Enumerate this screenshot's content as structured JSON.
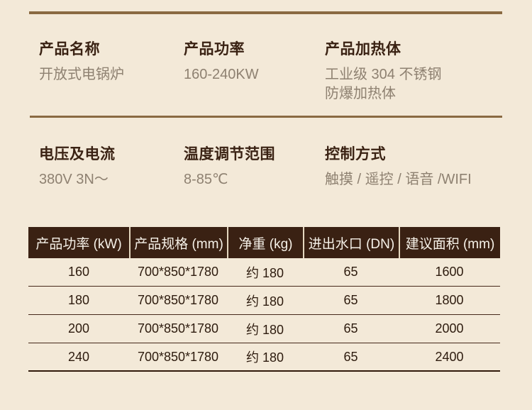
{
  "colors": {
    "background": "#f3e9d8",
    "accent_line": "#8a6a42",
    "label_text": "#3a2213",
    "value_text": "#8e8171",
    "table_header_bg": "#3a2113",
    "table_header_text": "#f6f1e8",
    "table_body_text": "#2d1b0e"
  },
  "specs": [
    {
      "label": "产品名称",
      "value": "开放式电锅炉"
    },
    {
      "label": "产品功率",
      "value": "160-240KW"
    },
    {
      "label": "产品加热体",
      "value": "工业级 304 不锈钢\n防爆加热体"
    },
    {
      "label": "电压及电流",
      "value": "380V 3N～"
    },
    {
      "label": "温度调节范围",
      "value": "8-85℃"
    },
    {
      "label": "控制方式",
      "value": "触摸 / 遥控 / 语音 /WIFI"
    }
  ],
  "table": {
    "columns": [
      "产品功率 (kW)",
      "产品规格 (mm)",
      "净重 (kg)",
      "进出水口 (DN)",
      "建议面积 (mm)"
    ],
    "rows": [
      [
        "160",
        "700*850*1780",
        "约 180",
        "65",
        "1600"
      ],
      [
        "180",
        "700*850*1780",
        "约 180",
        "65",
        "1800"
      ],
      [
        "200",
        "700*850*1780",
        "约 180",
        "65",
        "2000"
      ],
      [
        "240",
        "700*850*1780",
        "约 180",
        "65",
        "2400"
      ]
    ]
  }
}
